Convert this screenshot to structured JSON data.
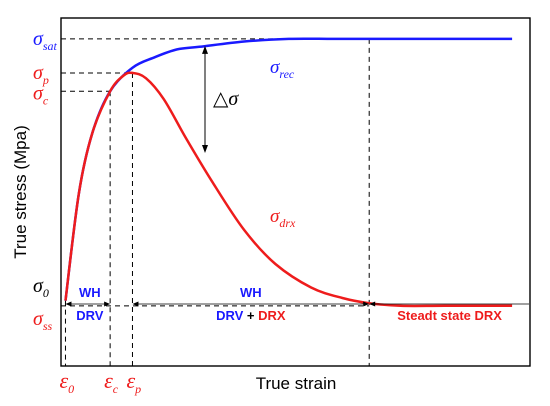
{
  "chart_data": {
    "type": "line",
    "title": "",
    "xlabel": "True strain",
    "ylabel": "True stress (Mpa)",
    "series": [
      {
        "name": "σ_rec",
        "color": "#1a1aff",
        "x": [
          0.0,
          0.03,
          0.06,
          0.1,
          0.15,
          0.2,
          0.25,
          0.3,
          0.4,
          0.5,
          0.6,
          0.7,
          0.8,
          1.0
        ],
        "y": [
          0.0,
          0.41,
          0.64,
          0.8,
          0.89,
          0.93,
          0.96,
          0.97,
          0.99,
          1.0,
          1.0,
          1.0,
          1.0,
          1.0
        ]
      },
      {
        "name": "σ_drx",
        "color": "#ee1c1c",
        "x": [
          0.0,
          0.03,
          0.06,
          0.1,
          0.13,
          0.15,
          0.18,
          0.22,
          0.27,
          0.33,
          0.4,
          0.47,
          0.55,
          0.62,
          0.68,
          0.75,
          0.85,
          1.0
        ],
        "y": [
          0.0,
          0.41,
          0.64,
          0.8,
          0.86,
          0.87,
          0.85,
          0.77,
          0.62,
          0.45,
          0.27,
          0.14,
          0.05,
          0.01,
          -0.01,
          -0.02,
          -0.02,
          -0.02
        ]
      }
    ],
    "reference_values": {
      "eps_0": 0.0,
      "eps_c": 0.1,
      "eps_p": 0.15,
      "eps_ss": 0.68,
      "sig_sat": 1.0,
      "sig_p": 0.87,
      "sig_c": 0.8,
      "sig_0": 0.0,
      "sig_ss": -0.02
    },
    "xlim": [
      -0.01,
      1.04
    ],
    "ylim": [
      -0.25,
      1.08
    ],
    "grid": false,
    "annotations": {
      "y_symbols": [
        {
          "sym": "σ",
          "sub": "sat",
          "color": "#1a1aff",
          "at": 1.0
        },
        {
          "sym": "σ",
          "sub": "p",
          "color": "#ee1c1c",
          "at": 0.87
        },
        {
          "sym": "σ",
          "sub": "c",
          "color": "#ee1c1c",
          "at": 0.8
        },
        {
          "sym": "σ",
          "sub": "0",
          "color": "#000000",
          "at": 0.04
        },
        {
          "sym": "σ",
          "sub": "ss",
          "color": "#ee1c1c",
          "at": -0.04
        }
      ],
      "x_symbols": [
        {
          "sym": "ε",
          "sub": "0",
          "color": "#ee1c1c",
          "at": 0.0
        },
        {
          "sym": "ε",
          "sub": "c",
          "color": "#ee1c1c",
          "at": 0.1
        },
        {
          "sym": "ε",
          "sub": "p",
          "color": "#ee1c1c",
          "at": 0.15
        }
      ],
      "curve_labels": [
        {
          "sym": "σ",
          "sub": "rec",
          "color": "#1a1aff"
        },
        {
          "sym": "σ",
          "sub": "drx",
          "color": "#ee1c1c"
        }
      ],
      "delta_label": "△σ",
      "regions": {
        "region1_line1": "WH",
        "region1_line2": "DRV",
        "region2_line1": "WH",
        "region2_drv": "DRV",
        "region2_plus": " + ",
        "region2_drx": "DRX",
        "region3": "Steadt state DRX"
      },
      "colors": {
        "blue": "#1a1aff",
        "red": "#ee1c1c",
        "black": "#000000"
      }
    }
  }
}
